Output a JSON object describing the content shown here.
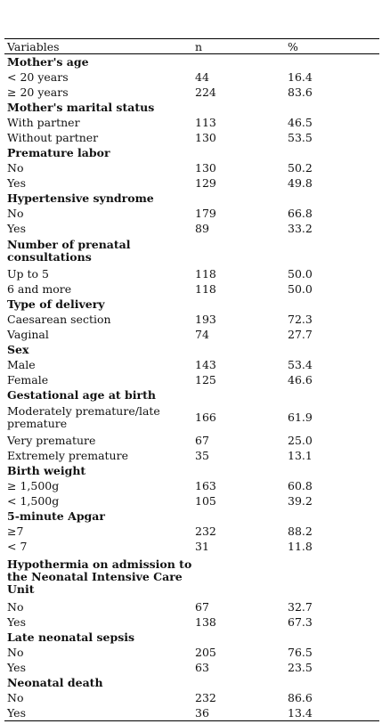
{
  "table": {
    "headers": [
      "Variables",
      "n",
      "%"
    ],
    "rows": [
      {
        "type": "section",
        "label": "Mother's age"
      },
      {
        "type": "data",
        "label": "< 20 years",
        "n": "44",
        "pct": "16.4"
      },
      {
        "type": "data",
        "label": "≥ 20 years",
        "n": "224",
        "pct": "83.6"
      },
      {
        "type": "section",
        "label": "Mother's marital status"
      },
      {
        "type": "data",
        "label": "With partner",
        "n": "113",
        "pct": "46.5"
      },
      {
        "type": "data",
        "label": "Without partner",
        "n": "130",
        "pct": "53.5"
      },
      {
        "type": "section",
        "label": "Premature labor"
      },
      {
        "type": "data",
        "label": "No",
        "n": "130",
        "pct": "50.2"
      },
      {
        "type": "data",
        "label": "Yes",
        "n": "129",
        "pct": "49.8"
      },
      {
        "type": "section",
        "label": "Hypertensive syndrome"
      },
      {
        "type": "data",
        "label": "No",
        "n": "179",
        "pct": "66.8"
      },
      {
        "type": "data",
        "label": "Yes",
        "n": "89",
        "pct": "33.2"
      },
      {
        "type": "section",
        "label": "Number of prenatal consultations",
        "wrap": 2
      },
      {
        "type": "data",
        "label": "Up to 5",
        "n": "118",
        "pct": "50.0"
      },
      {
        "type": "data",
        "label": "6 and more",
        "n": "118",
        "pct": "50.0"
      },
      {
        "type": "section",
        "label": "Type of delivery"
      },
      {
        "type": "data",
        "label": "Caesarean section",
        "n": "193",
        "pct": "72.3"
      },
      {
        "type": "data",
        "label": "Vaginal",
        "n": "74",
        "pct": "27.7"
      },
      {
        "type": "section",
        "label": "Sex"
      },
      {
        "type": "data",
        "label": "Male",
        "n": "143",
        "pct": "53.4"
      },
      {
        "type": "data",
        "label": "Female",
        "n": "125",
        "pct": "46.6"
      },
      {
        "type": "section",
        "label": "Gestational age at birth"
      },
      {
        "type": "data",
        "label": "Moderately premature/late premature",
        "n": "166",
        "pct": "61.9",
        "wrap": 2
      },
      {
        "type": "data",
        "label": "Very premature",
        "n": "67",
        "pct": "25.0"
      },
      {
        "type": "data",
        "label": "Extremely premature",
        "n": "35",
        "pct": "13.1"
      },
      {
        "type": "section",
        "label": "Birth weight"
      },
      {
        "type": "data",
        "label": "≥ 1,500g",
        "n": "163",
        "pct": "60.8"
      },
      {
        "type": "data",
        "label": "< 1,500g",
        "n": "105",
        "pct": "39.2"
      },
      {
        "type": "section",
        "label": "5-minute Apgar"
      },
      {
        "type": "data",
        "label": "≥7",
        "n": "232",
        "pct": "88.2"
      },
      {
        "type": "data",
        "label": "< 7",
        "n": "31",
        "pct": "11.8"
      },
      {
        "type": "section",
        "label": "Hypothermia on admission to the Neonatal Intensive Care Unit",
        "wrap": 3
      },
      {
        "type": "data",
        "label": "No",
        "n": "67",
        "pct": "32.7"
      },
      {
        "type": "data",
        "label": "Yes",
        "n": "138",
        "pct": "67.3"
      },
      {
        "type": "section",
        "label": "Late neonatal sepsis"
      },
      {
        "type": "data",
        "label": "No",
        "n": "205",
        "pct": "76.5"
      },
      {
        "type": "data",
        "label": "Yes",
        "n": "63",
        "pct": "23.5"
      },
      {
        "type": "section",
        "label": "Neonatal death"
      },
      {
        "type": "data",
        "label": "No",
        "n": "232",
        "pct": "86.6"
      },
      {
        "type": "data",
        "label": "Yes",
        "n": "36",
        "pct": "13.4"
      }
    ]
  }
}
